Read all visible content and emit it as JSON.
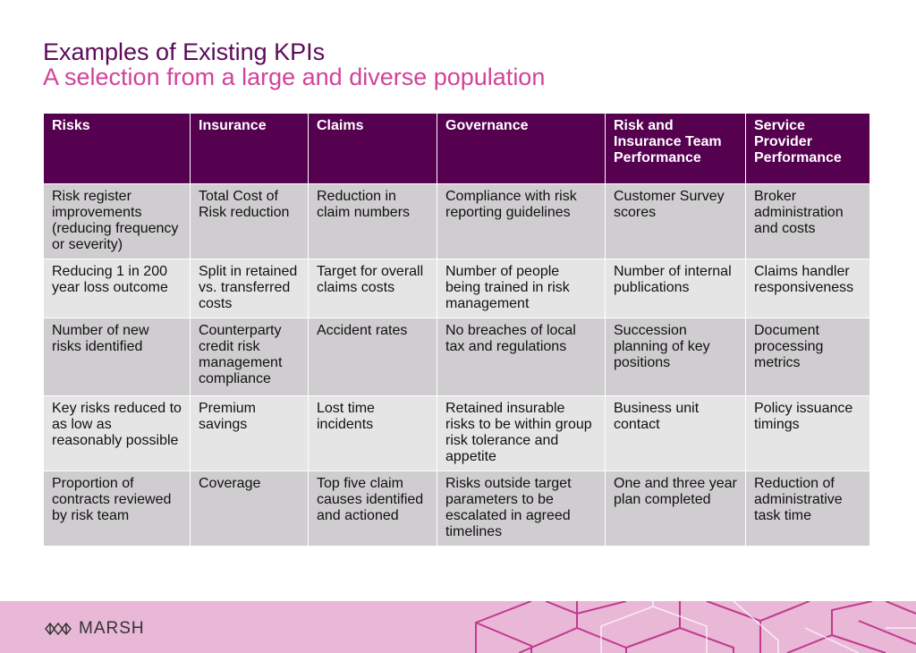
{
  "header": {
    "title": "Examples of Existing KPIs",
    "subtitle": "A selection from a large and diverse population"
  },
  "table": {
    "columns": [
      "Risks",
      "Insurance",
      "Claims",
      "Governance",
      "Risk and Insurance Team Performance",
      "Service Provider Performance"
    ],
    "rows": [
      [
        "Risk register improvements (reducing frequency or severity)",
        "Total Cost of Risk reduction",
        "Reduction in claim numbers",
        "Compliance with risk reporting guidelines",
        "Customer Survey scores",
        "Broker administration and costs"
      ],
      [
        "Reducing 1 in 200 year loss outcome",
        "Split in retained vs. transferred costs",
        "Target for overall claims costs",
        "Number of people being trained in risk management",
        "Number of internal publications",
        "Claims handler responsiveness"
      ],
      [
        "Number of new risks identified",
        "Counterparty credit risk management compliance",
        "Accident rates",
        "No breaches of local tax and regulations",
        "Succession planning of key positions",
        "Document processing metrics"
      ],
      [
        "Key risks reduced to as low as reasonably possible",
        "Premium savings",
        "Lost time incidents",
        "Retained insurable risks to be within group risk tolerance and appetite",
        "Business unit contact",
        "Policy issuance timings"
      ],
      [
        "Proportion of contracts reviewed by risk team",
        "Coverage",
        "Top five claim causes identified and actioned",
        "Risks outside target parameters to be escalated in agreed timelines",
        "One and three year plan completed",
        "Reduction of administrative task time"
      ]
    ]
  },
  "footer": {
    "logo_icon": "marsh-logo-icon",
    "logo_text": "MARSH"
  },
  "colors": {
    "header_bg": "#560050",
    "title": "#5b0b57",
    "subtitle": "#d1439a",
    "row_odd": "#cfcdcf",
    "row_even": "#e6e5e6",
    "footer_bg": "#e9b8d7",
    "pattern": "#c2398f"
  }
}
